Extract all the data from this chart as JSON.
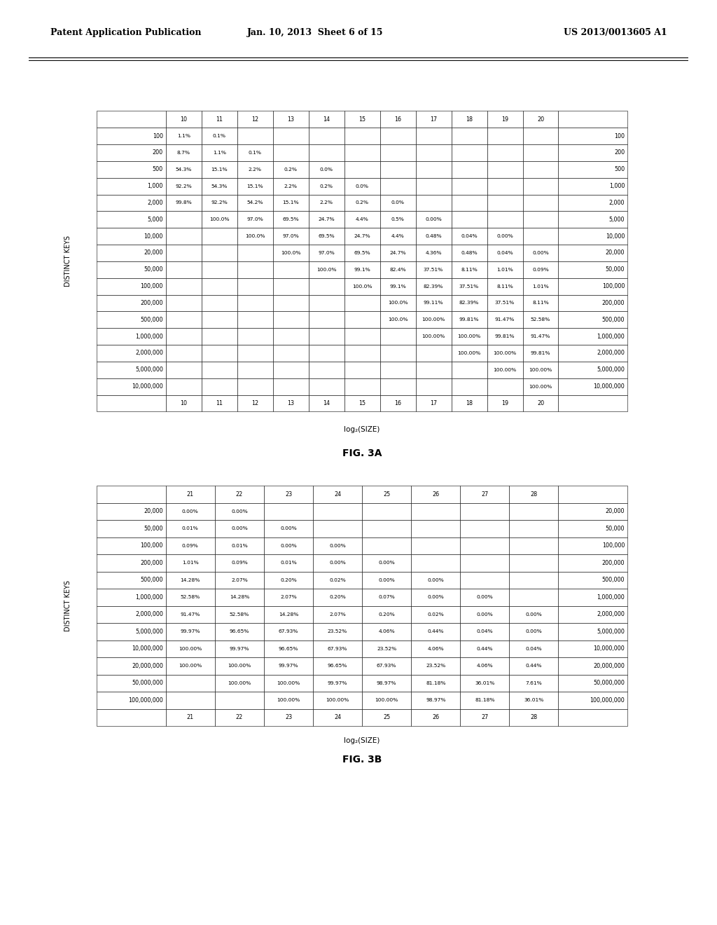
{
  "header": {
    "left": "Patent Application Publication",
    "center": "Jan. 10, 2013  Sheet 6 of 15",
    "right": "US 2013/0013605 A1"
  },
  "fig3a": {
    "title": "FIG. 3A",
    "col_headers": [
      "",
      "10",
      "11",
      "12",
      "13",
      "14",
      "15",
      "16",
      "17",
      "18",
      "19",
      "20",
      ""
    ],
    "row_headers": [
      "100",
      "200",
      "500",
      "1,000",
      "2,000",
      "5,000",
      "10,000",
      "20,000",
      "50,000",
      "100,000",
      "200,000",
      "500,000",
      "1,000,000",
      "2,000,000",
      "5,000,000",
      "10,000,000"
    ],
    "xlabel": "log₂(SIZE)",
    "ylabel": "DISTINCT KEYS",
    "data": [
      [
        "1.1%",
        "0.1%",
        "",
        "",
        "",
        "",
        "",
        "",
        "",
        "",
        ""
      ],
      [
        "8.7%",
        "1.1%",
        "0.1%",
        "",
        "",
        "",
        "",
        "",
        "",
        "",
        ""
      ],
      [
        "54.3%",
        "15.1%",
        "2.2%",
        "0.2%",
        "0.0%",
        "",
        "",
        "",
        "",
        "",
        ""
      ],
      [
        "92.2%",
        "54.3%",
        "15.1%",
        "2.2%",
        "0.2%",
        "0.0%",
        "",
        "",
        "",
        "",
        ""
      ],
      [
        "99.8%",
        "92.2%",
        "54.2%",
        "15.1%",
        "2.2%",
        "0.2%",
        "0.0%",
        "",
        "",
        "",
        ""
      ],
      [
        "",
        "100.0%",
        "97.0%",
        "69.5%",
        "24.7%",
        "4.4%",
        "0.5%",
        "0.00%",
        "",
        "",
        ""
      ],
      [
        "",
        "",
        "100.0%",
        "97.0%",
        "69.5%",
        "24.7%",
        "4.4%",
        "0.48%",
        "0.04%",
        "0.00%",
        ""
      ],
      [
        "",
        "",
        "",
        "100.0%",
        "97.0%",
        "69.5%",
        "24.7%",
        "4.36%",
        "0.48%",
        "0.04%",
        "0.00%"
      ],
      [
        "",
        "",
        "",
        "",
        "100.0%",
        "99.1%",
        "82.4%",
        "37.51%",
        "8.11%",
        "1.01%",
        "0.09%"
      ],
      [
        "",
        "",
        "",
        "",
        "",
        "100.0%",
        "99.1%",
        "82.39%",
        "37.51%",
        "8.11%",
        "1.01%"
      ],
      [
        "",
        "",
        "",
        "",
        "",
        "",
        "100.0%",
        "99.11%",
        "82.39%",
        "37.51%",
        "8.11%"
      ],
      [
        "",
        "",
        "",
        "",
        "",
        "",
        "100.0%",
        "100.00%",
        "99.81%",
        "91.47%",
        "52.58%"
      ],
      [
        "",
        "",
        "",
        "",
        "",
        "",
        "",
        "100.00%",
        "100.00%",
        "99.81%",
        "91.47%"
      ],
      [
        "",
        "",
        "",
        "",
        "",
        "",
        "",
        "",
        "100.00%",
        "100.00%",
        "99.81%"
      ],
      [
        "",
        "",
        "",
        "",
        "",
        "",
        "",
        "",
        "",
        "100.00%",
        "100.00%"
      ],
      [
        "",
        "",
        "",
        "",
        "",
        "",
        "",
        "",
        "",
        "",
        "100.00%"
      ]
    ]
  },
  "fig3b": {
    "title": "FIG. 3B",
    "col_headers": [
      "",
      "21",
      "22",
      "23",
      "24",
      "25",
      "26",
      "27",
      "28",
      ""
    ],
    "row_headers": [
      "20,000",
      "50,000",
      "100,000",
      "200,000",
      "500,000",
      "1,000,000",
      "2,000,000",
      "5,000,000",
      "10,000,000",
      "20,000,000",
      "50,000,000",
      "100,000,000"
    ],
    "xlabel": "log₂(SIZE)",
    "ylabel": "DISTINCT KEYS",
    "data": [
      [
        "0.00%",
        "0.00%",
        "",
        "",
        "",
        "",
        "",
        ""
      ],
      [
        "0.01%",
        "0.00%",
        "0.00%",
        "",
        "",
        "",
        "",
        ""
      ],
      [
        "0.09%",
        "0.01%",
        "0.00%",
        "0.00%",
        "",
        "",
        "",
        ""
      ],
      [
        "1.01%",
        "0.09%",
        "0.01%",
        "0.00%",
        "0.00%",
        "",
        "",
        ""
      ],
      [
        "14.28%",
        "2.07%",
        "0.20%",
        "0.02%",
        "0.00%",
        "0.00%",
        "",
        ""
      ],
      [
        "52.58%",
        "14.28%",
        "2.07%",
        "0.20%",
        "0.07%",
        "0.00%",
        "0.00%",
        ""
      ],
      [
        "91.47%",
        "52.58%",
        "14.28%",
        "2.07%",
        "0.20%",
        "0.02%",
        "0.00%",
        "0.00%"
      ],
      [
        "99.97%",
        "96.65%",
        "67.93%",
        "23.52%",
        "4.06%",
        "0.44%",
        "0.04%",
        "0.00%"
      ],
      [
        "100.00%",
        "99.97%",
        "96.65%",
        "67.93%",
        "23.52%",
        "4.06%",
        "0.44%",
        "0.04%"
      ],
      [
        "100.00%",
        "100.00%",
        "99.97%",
        "96.65%",
        "67.93%",
        "23.52%",
        "4.06%",
        "0.44%"
      ],
      [
        "",
        "100.00%",
        "100.00%",
        "99.97%",
        "98.97%",
        "81.18%",
        "36.01%",
        "7.61%"
      ],
      [
        "",
        "",
        "100.00%",
        "100.00%",
        "100.00%",
        "98.97%",
        "81.18%",
        "36.01%"
      ]
    ]
  }
}
